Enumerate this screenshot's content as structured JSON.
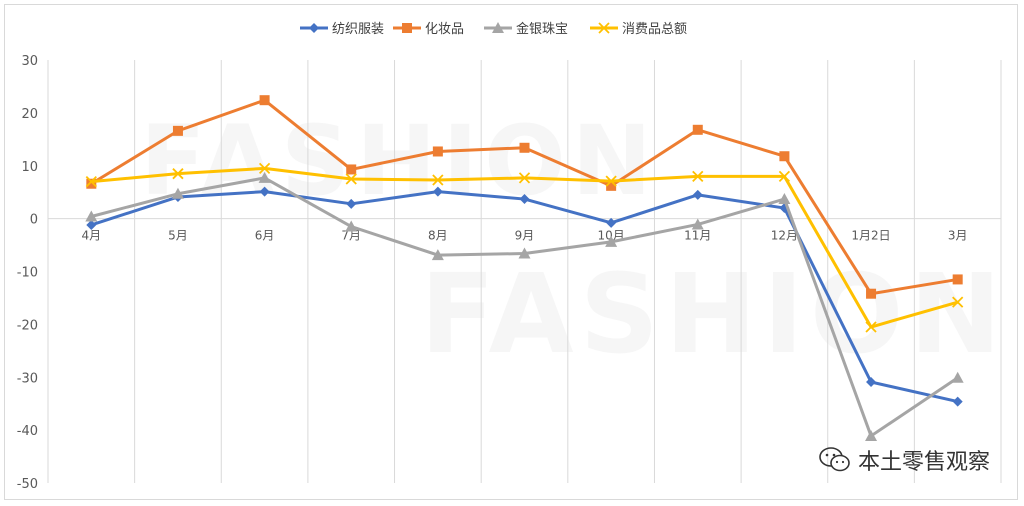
{
  "watermark": "FASHION",
  "credit": "本土零售观察",
  "chart_data": {
    "type": "line",
    "categories": [
      "4月",
      "5月",
      "6月",
      "7月",
      "8月",
      "9月",
      "10月",
      "11月",
      "12月",
      "1月2日",
      "3月"
    ],
    "ylim": [
      -50,
      30
    ],
    "yticks": [
      30,
      20,
      10,
      0,
      -10,
      -20,
      -30,
      -40,
      -50
    ],
    "grid": "vertical",
    "legend_position": "top",
    "series": [
      {
        "name": "纺织服装",
        "color": "#4472c4",
        "marker": "diamond",
        "values": [
          -1.2,
          4.1,
          5.1,
          2.8,
          5.1,
          3.7,
          -0.8,
          4.5,
          2.0,
          -30.9,
          -34.6
        ]
      },
      {
        "name": "化妆品",
        "color": "#ed7d31",
        "marker": "square",
        "values": [
          6.6,
          16.6,
          22.4,
          9.3,
          12.7,
          13.4,
          6.2,
          16.8,
          11.8,
          -14.2,
          -11.5
        ]
      },
      {
        "name": "金银珠宝",
        "color": "#a5a5a5",
        "marker": "triangle",
        "values": [
          0.4,
          4.7,
          7.7,
          -1.5,
          -6.9,
          -6.6,
          -4.4,
          -1.1,
          3.7,
          -41.1,
          -30.1
        ]
      },
      {
        "name": "消费品总额",
        "color": "#ffc000",
        "marker": "x",
        "values": [
          7.0,
          8.5,
          9.5,
          7.5,
          7.3,
          7.7,
          7.1,
          8.0,
          8.0,
          -20.5,
          -15.8
        ]
      }
    ]
  }
}
